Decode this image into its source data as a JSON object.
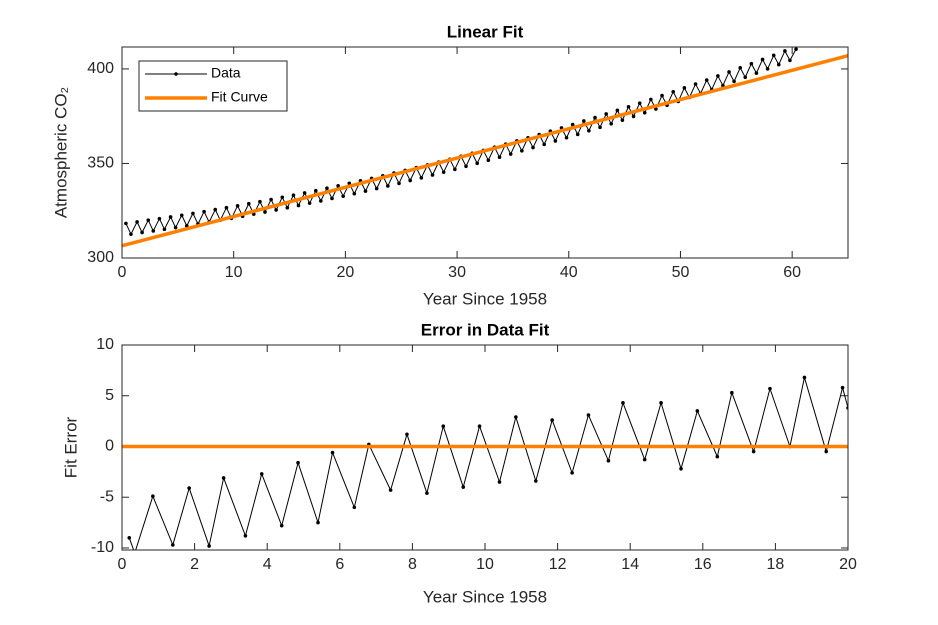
{
  "chart_data": [
    {
      "type": "line",
      "title": "Linear Fit",
      "xlabel": "Year Since 1958",
      "ylabel": "Atmospheric CO₂",
      "xlim": [
        0,
        65
      ],
      "ylim": [
        300,
        411.6
      ],
      "xticks": [
        0,
        10,
        20,
        30,
        40,
        50,
        60
      ],
      "yticks": [
        300,
        350,
        400
      ],
      "grid": false,
      "legend": "northwest",
      "series": [
        {
          "name": "Data",
          "color": "#000000",
          "marker": ".",
          "width": 1,
          "x": [
            0.35,
            0.8,
            1.35,
            1.8,
            2.35,
            2.8,
            3.35,
            3.8,
            4.35,
            4.8,
            5.35,
            5.8,
            6.35,
            6.8,
            7.35,
            7.8,
            8.35,
            8.8,
            9.35,
            9.8,
            10.35,
            10.8,
            11.35,
            11.8,
            12.35,
            12.8,
            13.35,
            13.8,
            14.35,
            14.8,
            15.35,
            15.8,
            16.35,
            16.8,
            17.35,
            17.8,
            18.35,
            18.8,
            19.35,
            19.8,
            20.35,
            20.8,
            21.35,
            21.8,
            22.35,
            22.8,
            23.35,
            23.8,
            24.35,
            24.8,
            25.35,
            25.8,
            26.35,
            26.8,
            27.35,
            27.8,
            28.35,
            28.8,
            29.35,
            29.8,
            30.35,
            30.8,
            31.35,
            31.8,
            32.35,
            32.8,
            33.35,
            33.8,
            34.35,
            34.8,
            35.35,
            35.8,
            36.35,
            36.8,
            37.35,
            37.8,
            38.35,
            38.8,
            39.35,
            39.8,
            40.35,
            40.8,
            41.35,
            41.8,
            42.35,
            42.8,
            43.35,
            43.8,
            44.35,
            44.8,
            45.35,
            45.8,
            46.35,
            46.8,
            47.35,
            47.8,
            48.35,
            48.8,
            49.35,
            49.8,
            50.35,
            50.8,
            51.35,
            51.8,
            52.35,
            52.8,
            53.35,
            53.8,
            54.35,
            54.8,
            55.35,
            55.8,
            56.35,
            56.8,
            57.35,
            57.8,
            58.35,
            58.8,
            59.35,
            59.8,
            60.35
          ],
          "values": [
            318.3,
            312.6,
            319.1,
            313.5,
            320.0,
            314.3,
            320.8,
            315.2,
            321.7,
            316.1,
            322.6,
            317.0,
            323.6,
            318.0,
            324.5,
            319.0,
            325.6,
            320.0,
            326.6,
            321.0,
            327.6,
            322.1,
            328.7,
            323.2,
            329.8,
            324.3,
            330.9,
            325.4,
            332.1,
            326.6,
            333.2,
            327.8,
            334.4,
            329.0,
            335.6,
            330.2,
            336.9,
            331.5,
            338.2,
            332.7,
            339.5,
            334.0,
            340.8,
            335.4,
            342.1,
            336.7,
            343.5,
            338.1,
            344.9,
            339.5,
            346.3,
            341.0,
            347.8,
            342.4,
            349.2,
            343.9,
            350.7,
            345.4,
            352.2,
            346.9,
            353.8,
            348.5,
            355.4,
            350.1,
            356.9,
            351.7,
            358.6,
            353.3,
            360.2,
            355.0,
            361.9,
            356.7,
            363.6,
            358.4,
            365.3,
            360.1,
            367.1,
            361.9,
            368.8,
            363.6,
            370.6,
            365.4,
            372.5,
            367.3,
            374.3,
            369.1,
            376.2,
            371.0,
            378.1,
            372.9,
            380.0,
            374.9,
            381.9,
            376.8,
            383.9,
            378.8,
            385.9,
            380.8,
            387.9,
            382.8,
            390.0,
            384.9,
            392.0,
            387.0,
            394.1,
            389.1,
            396.3,
            391.2,
            398.4,
            393.4,
            400.6,
            395.6,
            402.8,
            397.8,
            405.0,
            400.0,
            407.2,
            402.3,
            409.5,
            404.5,
            410.5
          ]
        },
        {
          "name": "Fit Curve",
          "color": "#ff8000",
          "width": 3.5,
          "x": [
            0,
            65
          ],
          "values": [
            306.5,
            407
          ]
        }
      ]
    },
    {
      "type": "line",
      "title": "Error in Data Fit",
      "xlabel": "Year Since 1958",
      "ylabel": "Fit Error",
      "xlim": [
        0,
        20
      ],
      "ylim": [
        -10.2,
        10
      ],
      "xticks": [
        0,
        2,
        4,
        6,
        8,
        10,
        12,
        14,
        16,
        18,
        20
      ],
      "yticks": [
        -10,
        -5,
        0,
        5,
        10
      ],
      "grid": false,
      "series": [
        {
          "color": "#000000",
          "marker": ".",
          "width": 1,
          "x": [
            0.2,
            0.35,
            0.85,
            1.4,
            1.85,
            2.4,
            2.8,
            3.4,
            3.85,
            4.4,
            4.85,
            5.4,
            5.8,
            6.4,
            6.8,
            7.4,
            7.85,
            8.4,
            8.85,
            9.4,
            9.85,
            10.4,
            10.85,
            11.4,
            11.85,
            12.4,
            12.85,
            13.4,
            13.8,
            14.4,
            14.85,
            15.4,
            15.85,
            16.4,
            16.8,
            17.4,
            17.85,
            18.4,
            18.8,
            19.4,
            19.85,
            20
          ],
          "values": [
            -9,
            -10.5,
            -4.9,
            -9.7,
            -4.1,
            -9.8,
            -3.1,
            -8.8,
            -2.7,
            -7.8,
            -1.6,
            -7.5,
            -0.6,
            -6,
            0.2,
            -4.3,
            1.2,
            -4.6,
            2,
            -4,
            2,
            -3.5,
            2.9,
            -3.4,
            2.6,
            -2.6,
            3.1,
            -1.4,
            4.3,
            -1.3,
            4.3,
            -2.2,
            3.5,
            -1,
            5.3,
            -0.5,
            5.7,
            0,
            6.8,
            -0.5,
            5.8,
            3.8
          ]
        },
        {
          "color": "#ff8000",
          "width": 3.5,
          "x": [
            0,
            20
          ],
          "values": [
            0,
            0
          ]
        }
      ]
    }
  ]
}
